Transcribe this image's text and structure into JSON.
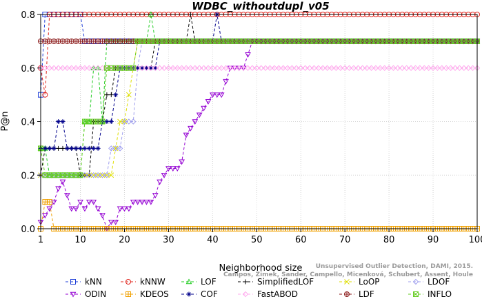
{
  "chart_data": {
    "type": "line",
    "title": "WDBC_withoutdupl_v05",
    "xlabel": "Neighborhood size",
    "ylabel": "P@n",
    "xlim": [
      1,
      100
    ],
    "ylim": [
      0,
      0.8
    ],
    "xticks": [
      1,
      10,
      20,
      30,
      40,
      50,
      60,
      70,
      80,
      90,
      100
    ],
    "yticks": [
      0.0,
      0.2,
      0.4,
      0.6,
      0.8
    ],
    "ytick_labels": [
      "0.0",
      "0.2",
      "0.4",
      "0.6",
      "0.8"
    ],
    "grid": true,
    "legend_position": "bottom",
    "credit": [
      "Campos, Zimek, Sander, Campello, Micenková, Schubert, Assent, Houle",
      "Unsupervised Outlier Detection, DAMI, 2015."
    ],
    "series": [
      {
        "name": "kNN",
        "color": "#1f3fd8",
        "marker": "square",
        "points": [
          [
            1,
            0.5
          ],
          [
            2,
            0.8
          ],
          [
            10,
            0.8
          ],
          [
            11,
            0.7
          ],
          [
            100,
            0.7
          ]
        ]
      },
      {
        "name": "kNNW",
        "color": "#e0241c",
        "marker": "circle",
        "points": [
          [
            1,
            0.6
          ],
          [
            2,
            0.5
          ],
          [
            3,
            0.8
          ],
          [
            100,
            0.8
          ]
        ]
      },
      {
        "name": "LOF",
        "color": "#22cc22",
        "marker": "triangle-up",
        "points": [
          [
            1,
            0.3
          ],
          [
            2,
            0.3
          ],
          [
            3,
            0.2
          ],
          [
            10,
            0.2
          ],
          [
            11,
            0.4
          ],
          [
            12,
            0.4
          ],
          [
            13,
            0.6
          ],
          [
            14,
            0.6
          ],
          [
            15,
            0.4
          ],
          [
            16,
            0.7
          ],
          [
            25,
            0.7
          ],
          [
            26,
            0.8
          ],
          [
            27,
            0.7
          ],
          [
            100,
            0.7
          ]
        ]
      },
      {
        "name": "SimplifiedLOF",
        "color": "#000000",
        "marker": "plus",
        "points": [
          [
            1,
            0.2
          ],
          [
            2,
            0.3
          ],
          [
            9,
            0.3
          ],
          [
            10,
            0.2
          ],
          [
            12,
            0.2
          ],
          [
            13,
            0.4
          ],
          [
            14,
            0.4
          ],
          [
            15,
            0.4
          ],
          [
            16,
            0.5
          ],
          [
            17,
            0.5
          ],
          [
            18,
            0.6
          ],
          [
            26,
            0.6
          ],
          [
            27,
            0.7
          ],
          [
            34,
            0.7
          ],
          [
            35,
            0.8
          ],
          [
            36,
            0.7
          ],
          [
            100,
            0.7
          ]
        ]
      },
      {
        "name": "LoOP",
        "color": "#dede00",
        "marker": "x",
        "points": [
          [
            1,
            0.2
          ],
          [
            17,
            0.2
          ],
          [
            18,
            0.3
          ],
          [
            19,
            0.4
          ],
          [
            20,
            0.4
          ],
          [
            21,
            0.5
          ],
          [
            22,
            0.6
          ],
          [
            23,
            0.7
          ],
          [
            100,
            0.7
          ]
        ]
      },
      {
        "name": "LDOF",
        "color": "#a0a0ee",
        "marker": "diamond",
        "points": [
          [
            1,
            0.2
          ],
          [
            16,
            0.2
          ],
          [
            17,
            0.3
          ],
          [
            19,
            0.3
          ],
          [
            20,
            0.4
          ],
          [
            22,
            0.4
          ],
          [
            23,
            0.6
          ],
          [
            24,
            0.7
          ],
          [
            100,
            0.7
          ]
        ]
      },
      {
        "name": "ODIN",
        "color": "#9400d3",
        "marker": "triangle-down",
        "points": [
          [
            1,
            0.025
          ],
          [
            2,
            0.05
          ],
          [
            3,
            0.075
          ],
          [
            4,
            0.1
          ],
          [
            5,
            0.15
          ],
          [
            6,
            0.175
          ],
          [
            7,
            0.125
          ],
          [
            8,
            0.075
          ],
          [
            9,
            0.075
          ],
          [
            10,
            0.1
          ],
          [
            11,
            0.075
          ],
          [
            12,
            0.1
          ],
          [
            13,
            0.1
          ],
          [
            14,
            0.075
          ],
          [
            15,
            0.05
          ],
          [
            16,
            0.0
          ],
          [
            17,
            0.025
          ],
          [
            18,
            0.025
          ],
          [
            19,
            0.075
          ],
          [
            20,
            0.075
          ],
          [
            21,
            0.075
          ],
          [
            22,
            0.1
          ],
          [
            23,
            0.1
          ],
          [
            24,
            0.1
          ],
          [
            25,
            0.1
          ],
          [
            26,
            0.1
          ],
          [
            27,
            0.125
          ],
          [
            28,
            0.175
          ],
          [
            29,
            0.2
          ],
          [
            30,
            0.225
          ],
          [
            31,
            0.225
          ],
          [
            32,
            0.225
          ],
          [
            33,
            0.25
          ],
          [
            34,
            0.35
          ],
          [
            35,
            0.375
          ],
          [
            36,
            0.4
          ],
          [
            37,
            0.425
          ],
          [
            38,
            0.45
          ],
          [
            39,
            0.475
          ],
          [
            40,
            0.5
          ],
          [
            41,
            0.5
          ],
          [
            42,
            0.5
          ],
          [
            43,
            0.55
          ],
          [
            44,
            0.6
          ],
          [
            45,
            0.6
          ],
          [
            46,
            0.6
          ],
          [
            47,
            0.6
          ],
          [
            48,
            0.65
          ],
          [
            49,
            0.7
          ],
          [
            100,
            0.7
          ]
        ]
      },
      {
        "name": "KDEOS",
        "color": "#f0a000",
        "marker": "boxed-plus",
        "points": [
          [
            1,
            0.0
          ],
          [
            2,
            0.1
          ],
          [
            3,
            0.1
          ],
          [
            4,
            0.0
          ],
          [
            100,
            0.0
          ]
        ]
      },
      {
        "name": "COF",
        "color": "#00008b",
        "marker": "asterisk",
        "points": [
          [
            1,
            0.3
          ],
          [
            4,
            0.3
          ],
          [
            5,
            0.4
          ],
          [
            6,
            0.4
          ],
          [
            7,
            0.3
          ],
          [
            13,
            0.3
          ],
          [
            14,
            0.3
          ],
          [
            15,
            0.4
          ],
          [
            16,
            0.4
          ],
          [
            17,
            0.4
          ],
          [
            18,
            0.5
          ],
          [
            19,
            0.6
          ],
          [
            27,
            0.6
          ],
          [
            28,
            0.7
          ],
          [
            40,
            0.7
          ],
          [
            41,
            0.8
          ],
          [
            42,
            0.7
          ],
          [
            100,
            0.7
          ]
        ]
      },
      {
        "name": "FastABOD",
        "color": "#ffaaee",
        "marker": "diamond",
        "points": [
          [
            1,
            0.6
          ],
          [
            100,
            0.6
          ]
        ]
      },
      {
        "name": "LDF",
        "color": "#8b1a1a",
        "marker": "circle-plus",
        "points": [
          [
            1,
            0.7
          ],
          [
            100,
            0.7
          ]
        ]
      },
      {
        "name": "INFLO",
        "color": "#66cc22",
        "marker": "boxed-x",
        "points": [
          [
            1,
            0.3
          ],
          [
            2,
            0.2
          ],
          [
            10,
            0.2
          ],
          [
            11,
            0.4
          ],
          [
            15,
            0.4
          ],
          [
            16,
            0.6
          ],
          [
            22,
            0.6
          ],
          [
            23,
            0.7
          ],
          [
            100,
            0.7
          ]
        ]
      }
    ]
  }
}
